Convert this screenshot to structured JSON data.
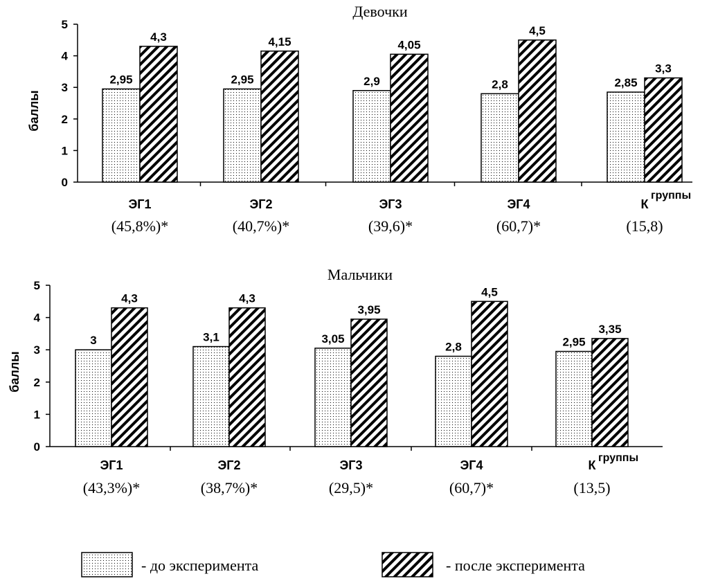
{
  "chart_data": [
    {
      "type": "bar",
      "title": "Девочки",
      "ylabel": "баллы",
      "xlabel": "группы",
      "ylim": [
        0,
        5
      ],
      "yticks": [
        "0",
        "1",
        "2",
        "3",
        "4",
        "5"
      ],
      "categories": [
        "ЭГ1",
        "ЭГ2",
        "ЭГ3",
        "ЭГ4",
        "К"
      ],
      "category_notes": [
        "(45,8%)*",
        "(40,7%)*",
        "(39,6)*",
        "(60,7)*",
        "(15,8)"
      ],
      "series": [
        {
          "name": "- до эксперимента",
          "values": [
            2.95,
            2.95,
            2.9,
            2.8,
            2.85
          ],
          "labels": [
            "2,95",
            "2,95",
            "2,9",
            "2,8",
            "2,85"
          ]
        },
        {
          "name": "- после эксперимента",
          "values": [
            4.3,
            4.15,
            4.05,
            4.5,
            3.3
          ],
          "labels": [
            "4,3",
            "4,15",
            "4,05",
            "4,5",
            "3,3"
          ]
        }
      ]
    },
    {
      "type": "bar",
      "title": "Мальчики",
      "ylabel": "баллы",
      "xlabel": "группы",
      "ylim": [
        0,
        5
      ],
      "yticks": [
        "0",
        "1",
        "2",
        "3",
        "4",
        "5"
      ],
      "categories": [
        "ЭГ1",
        "ЭГ2",
        "ЭГ3",
        "ЭГ4",
        "К"
      ],
      "category_notes": [
        "(43,3%)*",
        "(38,7%)*",
        "(29,5)*",
        "(60,7)*",
        "(13,5)"
      ],
      "series": [
        {
          "name": "- до эксперимента",
          "values": [
            3,
            3.1,
            3.05,
            2.8,
            2.95
          ],
          "labels": [
            "3",
            "3,1",
            "3,05",
            "2,8",
            "2,95"
          ]
        },
        {
          "name": "- после эксперимента",
          "values": [
            4.3,
            4.3,
            3.95,
            4.5,
            3.35
          ],
          "labels": [
            "4,3",
            "4,3",
            "3,95",
            "4,5",
            "3,35"
          ]
        }
      ]
    }
  ],
  "legend": {
    "before_label": "- до эксперимента",
    "after_label": "- после эксперимента"
  }
}
